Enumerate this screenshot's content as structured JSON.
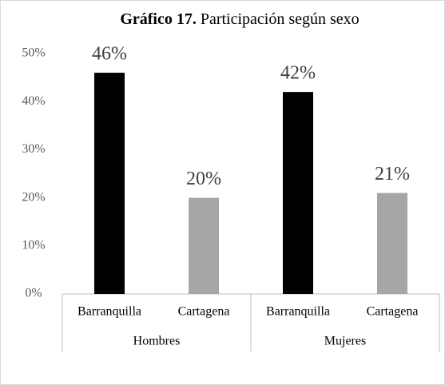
{
  "chart_data": {
    "type": "bar",
    "title_number": "Gráfico 17.",
    "title": "Participación según sexo",
    "categories": [
      "Hombres",
      "Mujeres"
    ],
    "series": [
      {
        "name": "Barranquilla",
        "color": "#000000",
        "values": [
          46,
          42
        ],
        "value_labels": [
          "46%",
          "42%"
        ]
      },
      {
        "name": "Cartagena",
        "color": "#a6a6a6",
        "values": [
          20,
          21
        ],
        "value_labels": [
          "20%",
          "21%"
        ]
      }
    ],
    "ylim": [
      0,
      50
    ],
    "yticks": [
      {
        "value": 0,
        "label": "0%"
      },
      {
        "value": 10,
        "label": "10%"
      },
      {
        "value": 20,
        "label": "20%"
      },
      {
        "value": 30,
        "label": "30%"
      },
      {
        "value": 40,
        "label": "40%"
      },
      {
        "value": 50,
        "label": "50%"
      }
    ],
    "grid": false
  }
}
